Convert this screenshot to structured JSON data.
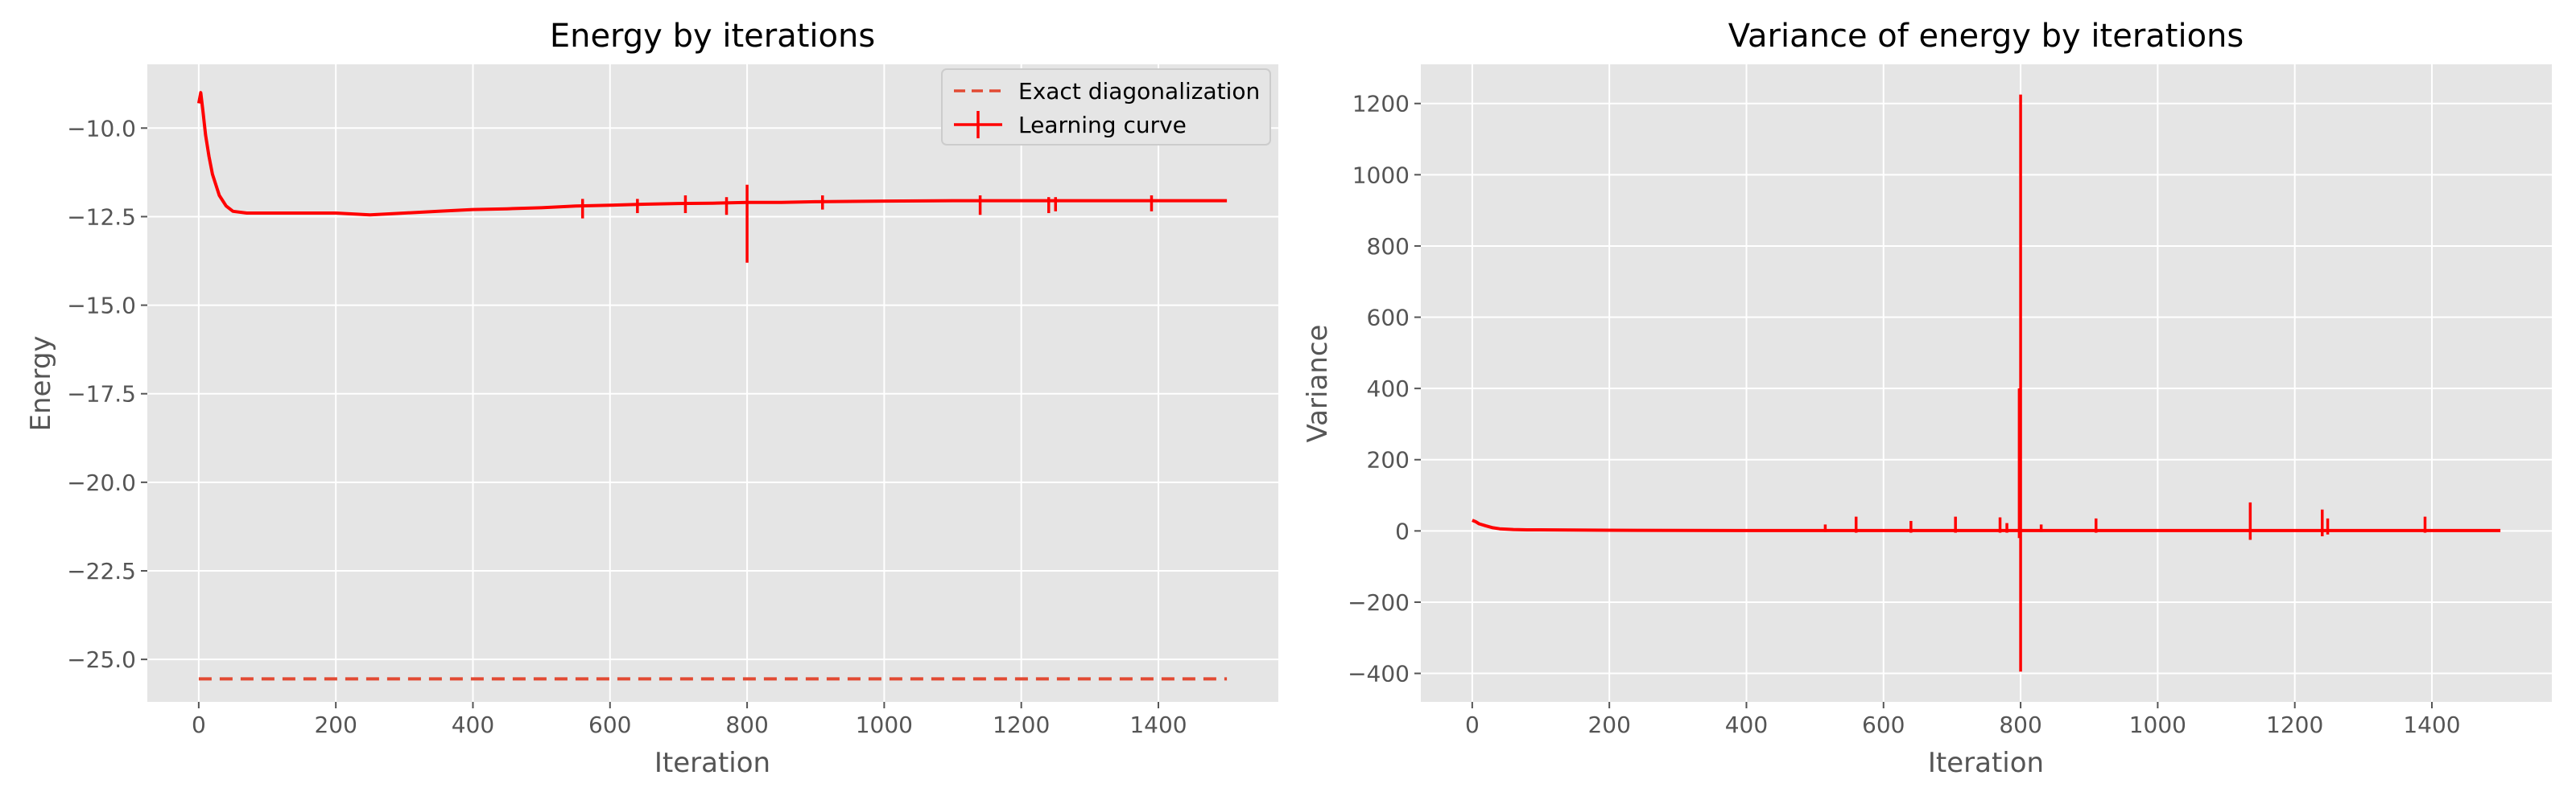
{
  "figure": {
    "background": "#ffffff"
  },
  "style": {
    "axes_bg": "#e5e5e5",
    "grid_color": "#ffffff",
    "learning_color": "#ff0000",
    "exact_color": "#e24a33"
  },
  "chart_data": [
    {
      "type": "line",
      "title": "Energy by iterations",
      "xlabel": "Iteration",
      "ylabel": "Energy",
      "xlim": [
        -75,
        1575
      ],
      "ylim": [
        -26.2,
        -8.2
      ],
      "xticks": [
        0,
        200,
        400,
        600,
        800,
        1000,
        1200,
        1400
      ],
      "yticks": [
        -10.0,
        -12.5,
        -15.0,
        -17.5,
        -20.0,
        -22.5,
        -25.0
      ],
      "x_tick_labels": [
        "0",
        "200",
        "400",
        "600",
        "800",
        "1000",
        "1200",
        "1400"
      ],
      "y_tick_labels": [
        "−10.0",
        "−12.5",
        "−15.0",
        "−17.5",
        "−20.0",
        "−22.5",
        "−25.0"
      ],
      "grid": true,
      "legend_position": "top-right",
      "series": [
        {
          "name": "Exact diagonalization",
          "style": "dashed",
          "x": [
            0,
            1500
          ],
          "y": [
            -25.55,
            -25.55
          ]
        },
        {
          "name": "Learning curve",
          "style": "solid-errorbar",
          "x": [
            0,
            3,
            6,
            10,
            15,
            20,
            30,
            40,
            50,
            70,
            100,
            150,
            200,
            250,
            300,
            350,
            400,
            450,
            500,
            550,
            600,
            650,
            700,
            750,
            800,
            850,
            900,
            950,
            1000,
            1100,
            1200,
            1300,
            1400,
            1500
          ],
          "y": [
            -9.3,
            -9.0,
            -9.5,
            -10.2,
            -10.8,
            -11.3,
            -11.9,
            -12.2,
            -12.35,
            -12.4,
            -12.4,
            -12.4,
            -12.4,
            -12.45,
            -12.4,
            -12.35,
            -12.3,
            -12.28,
            -12.25,
            -12.2,
            -12.18,
            -12.15,
            -12.13,
            -12.12,
            -12.1,
            -12.1,
            -12.08,
            -12.07,
            -12.06,
            -12.05,
            -12.05,
            -12.05,
            -12.05,
            -12.05
          ],
          "error_bars": [
            {
              "x": 800,
              "low": -13.8,
              "high": -11.6
            },
            {
              "x": 560,
              "low": -12.55,
              "high": -12.0
            },
            {
              "x": 640,
              "low": -12.4,
              "high": -12.0
            },
            {
              "x": 710,
              "low": -12.4,
              "high": -11.9
            },
            {
              "x": 770,
              "low": -12.45,
              "high": -11.95
            },
            {
              "x": 910,
              "low": -12.3,
              "high": -11.9
            },
            {
              "x": 1140,
              "low": -12.45,
              "high": -11.9
            },
            {
              "x": 1240,
              "low": -12.4,
              "high": -11.95
            },
            {
              "x": 1250,
              "low": -12.35,
              "high": -11.95
            },
            {
              "x": 1390,
              "low": -12.35,
              "high": -11.9
            }
          ]
        }
      ]
    },
    {
      "type": "line",
      "title": "Variance of energy by iterations",
      "xlabel": "Iteration",
      "ylabel": "Variance",
      "xlim": [
        -75,
        1575
      ],
      "ylim": [
        -480,
        1310
      ],
      "xticks": [
        0,
        200,
        400,
        600,
        800,
        1000,
        1200,
        1400
      ],
      "yticks": [
        -400,
        -200,
        0,
        200,
        400,
        600,
        800,
        1000,
        1200
      ],
      "x_tick_labels": [
        "0",
        "200",
        "400",
        "600",
        "800",
        "1000",
        "1200",
        "1400"
      ],
      "y_tick_labels": [
        "−400",
        "−200",
        "0",
        "200",
        "400",
        "600",
        "800",
        "1000",
        "1200"
      ],
      "grid": true,
      "series": [
        {
          "name": "Variance",
          "style": "solid-errorbar",
          "x": [
            0,
            5,
            10,
            20,
            30,
            40,
            60,
            80,
            100,
            200,
            400,
            600,
            800,
            1000,
            1200,
            1400,
            1500
          ],
          "y": [
            30,
            26,
            20,
            14,
            9,
            6,
            4,
            3,
            3,
            2,
            1,
            1,
            1,
            1,
            1,
            1,
            1
          ],
          "error_bars": [
            {
              "x": 800,
              "low": -395,
              "high": 1225
            },
            {
              "x": 798,
              "low": -20,
              "high": 400
            },
            {
              "x": 560,
              "low": -5,
              "high": 40
            },
            {
              "x": 640,
              "low": -5,
              "high": 28
            },
            {
              "x": 705,
              "low": -5,
              "high": 40
            },
            {
              "x": 770,
              "low": -5,
              "high": 38
            },
            {
              "x": 780,
              "low": -5,
              "high": 22
            },
            {
              "x": 910,
              "low": -5,
              "high": 35
            },
            {
              "x": 1135,
              "low": -25,
              "high": 80
            },
            {
              "x": 1240,
              "low": -15,
              "high": 60
            },
            {
              "x": 1248,
              "low": -10,
              "high": 35
            },
            {
              "x": 1390,
              "low": -5,
              "high": 40
            },
            {
              "x": 515,
              "low": -3,
              "high": 18
            },
            {
              "x": 830,
              "low": -3,
              "high": 18
            }
          ]
        }
      ]
    }
  ]
}
